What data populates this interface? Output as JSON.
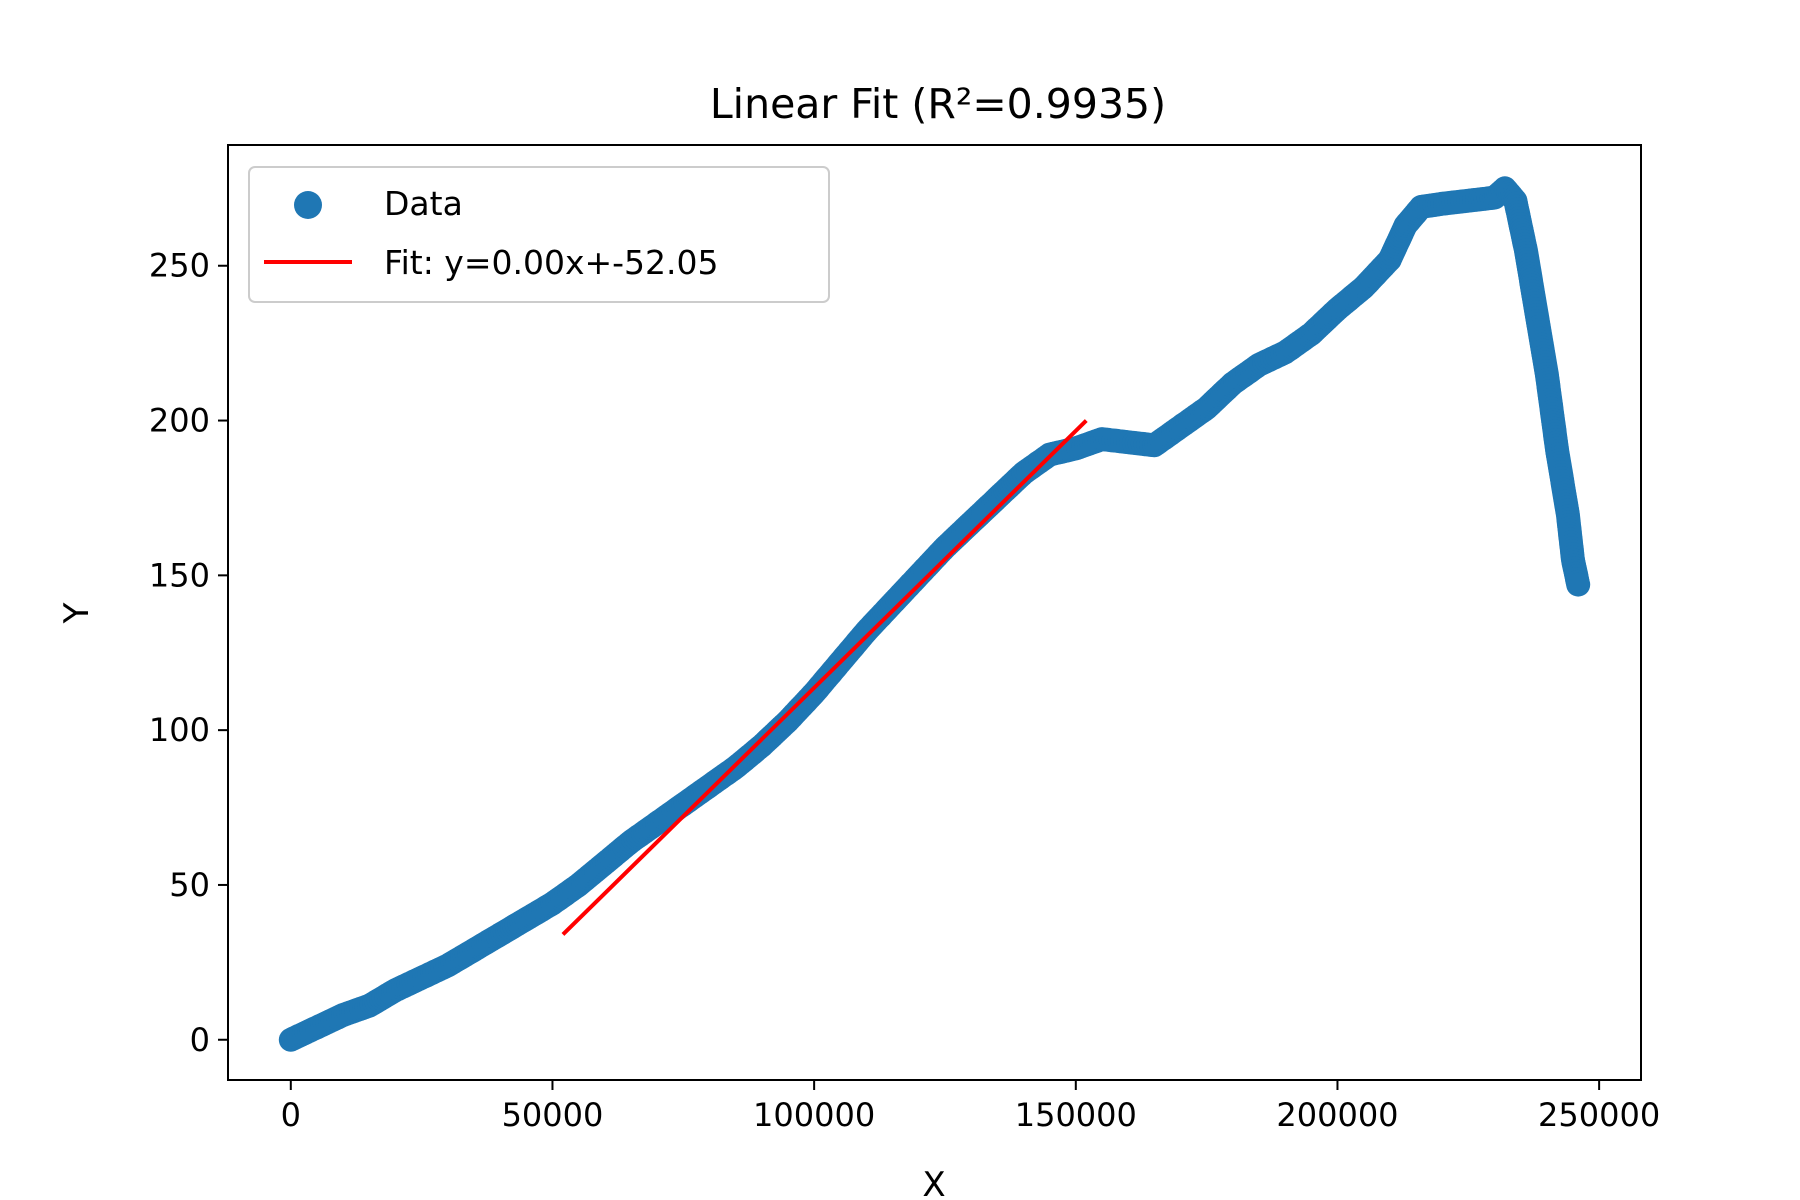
{
  "chart_data": {
    "type": "scatter",
    "title": "Linear Fit (R²=0.9935)",
    "xlabel": "X",
    "ylabel": "Y",
    "xlim": [
      -12000,
      258000
    ],
    "ylim": [
      -13,
      289
    ],
    "xticks": [
      0,
      50000,
      100000,
      150000,
      200000,
      250000
    ],
    "xtick_labels": [
      "0",
      "50000",
      "100000",
      "150000",
      "200000",
      "250000"
    ],
    "yticks": [
      0,
      50,
      100,
      150,
      200,
      250
    ],
    "ytick_labels": [
      "0",
      "50",
      "100",
      "150",
      "200",
      "250"
    ],
    "grid": false,
    "legend_position": "upper-left",
    "series": [
      {
        "name": "Data",
        "kind": "scatter",
        "color": "#1f77b4",
        "x": [
          0,
          5000,
          10000,
          15000,
          20000,
          25000,
          30000,
          35000,
          40000,
          45000,
          50000,
          55000,
          60000,
          65000,
          70000,
          75000,
          80000,
          85000,
          90000,
          95000,
          100000,
          105000,
          110000,
          115000,
          120000,
          125000,
          130000,
          135000,
          140000,
          145000,
          150000,
          155000,
          160000,
          165000,
          170000,
          175000,
          180000,
          185000,
          190000,
          195000,
          200000,
          205000,
          210000,
          213000,
          216000,
          220000,
          225000,
          230000,
          232000,
          234000,
          236000,
          238000,
          240000,
          242000,
          244000,
          245000,
          246000
        ],
        "y": [
          0,
          4,
          8,
          11,
          16,
          20,
          24,
          29,
          34,
          39,
          44,
          50,
          57,
          64,
          70,
          76,
          82,
          88,
          95,
          103,
          112,
          122,
          132,
          141,
          150,
          159,
          167,
          175,
          183,
          189,
          191,
          194,
          193,
          192,
          198,
          204,
          212,
          218,
          222,
          228,
          236,
          243,
          252,
          263,
          269,
          270,
          271,
          272,
          275,
          271,
          255,
          235,
          215,
          190,
          170,
          155,
          147
        ]
      },
      {
        "name": "Fit: y=0.00x+-52.05",
        "kind": "line",
        "color": "#ff0000",
        "x": [
          52000,
          152000
        ],
        "y": [
          34,
          200
        ]
      }
    ]
  }
}
